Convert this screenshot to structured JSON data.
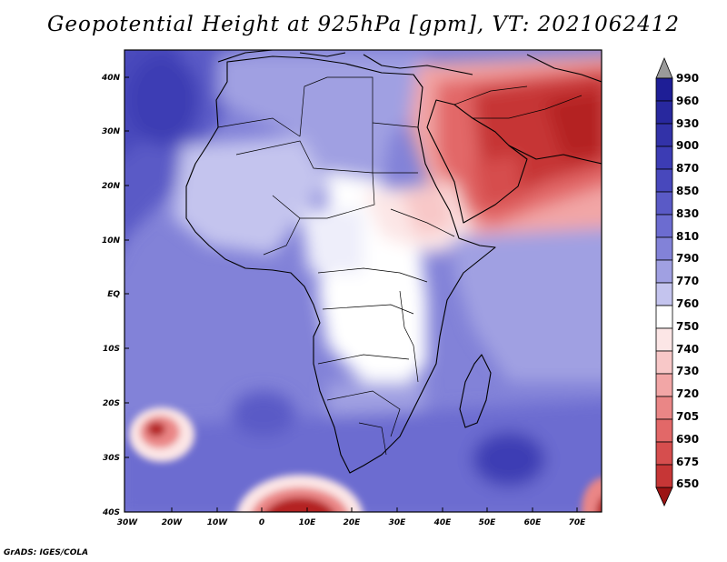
{
  "title": "Geopotential Height at 925hPa [gpm], VT: 2021062412",
  "credit": "GrADS: IGES/COLA",
  "map": {
    "region": "Africa",
    "lat_labels": [
      "40N",
      "30N",
      "20N",
      "10N",
      "EQ",
      "10S",
      "20S",
      "30S",
      "40S"
    ],
    "lon_labels": [
      "30W",
      "20W",
      "10W",
      "0",
      "10E",
      "20E",
      "30E",
      "40E",
      "50E",
      "60E",
      "70E"
    ]
  },
  "colorbar": {
    "levels": [
      "990",
      "960",
      "930",
      "900",
      "870",
      "850",
      "830",
      "810",
      "790",
      "770",
      "760",
      "750",
      "740",
      "730",
      "720",
      "705",
      "690",
      "675",
      "650"
    ],
    "colors": {
      "above_990": "#9a9a9a",
      "990": "#1e1e96",
      "960": "#28289e",
      "930": "#3232a8",
      "900": "#3c3cb4",
      "870": "#4848bc",
      "850": "#5a5ac6",
      "830": "#6c6cd0",
      "810": "#8282d8",
      "790": "#a0a0e2",
      "770": "#c4c4ee",
      "760": "#ffffff",
      "750": "#fce6e6",
      "740": "#f8c8c8",
      "730": "#f2a6a6",
      "720": "#ea8686",
      "705": "#e26868",
      "690": "#d64e4e",
      "675": "#c63636",
      "650": "#b42020",
      "below_650": "#9c1414"
    }
  }
}
